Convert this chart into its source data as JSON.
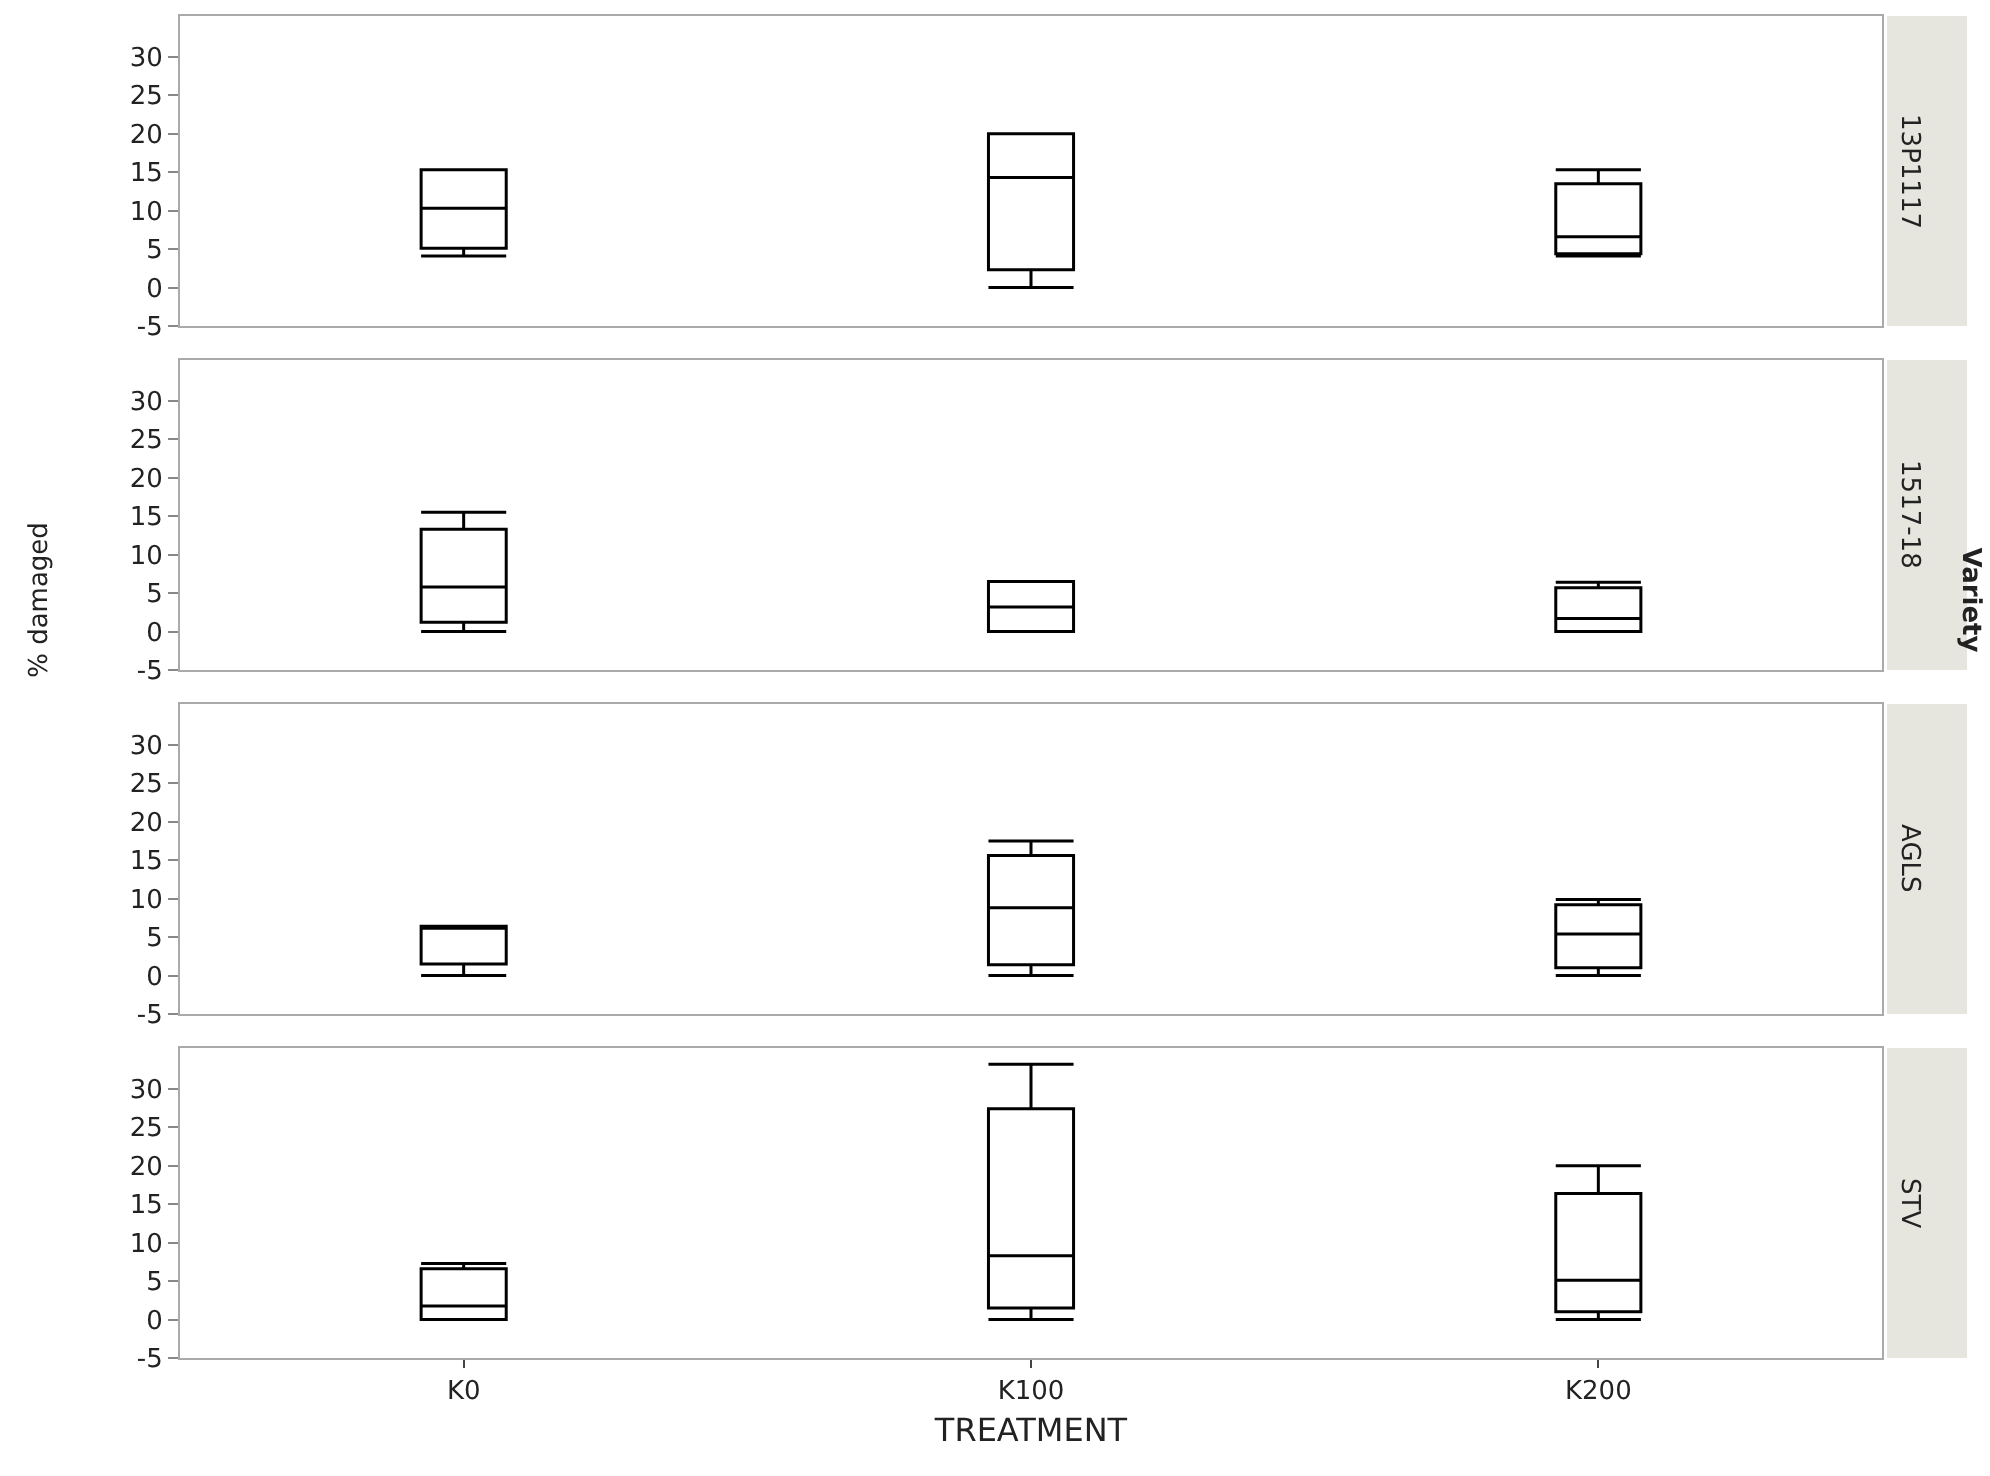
{
  "chart_data": [
    {
      "type": "box",
      "title": "13P1117",
      "tick_labels": "y",
      "ylim": [
        -5,
        35.3
      ],
      "yticks": [
        -5,
        0,
        5,
        10,
        15,
        20,
        25,
        30
      ],
      "boxes": [
        {
          "low": 4.1,
          "q1": 5.1,
          "median": 10.3,
          "q3": 15.3,
          "high": 15.3
        },
        {
          "low": 0,
          "q1": 2.3,
          "median": 14.3,
          "q3": 20,
          "high": 20
        },
        {
          "low": 4.1,
          "q1": 4.4,
          "median": 6.6,
          "q3": 13.5,
          "high": 15.3
        }
      ]
    },
    {
      "type": "box",
      "title": "1517-18",
      "ylabel": "% damaged",
      "annotations": [
        "Variety"
      ],
      "tick_labels": "y",
      "ylim": [
        -5,
        35.3
      ],
      "yticks": [
        -5,
        0,
        5,
        10,
        15,
        20,
        25,
        30
      ],
      "boxes": [
        {
          "low": 0,
          "q1": 1.2,
          "median": 5.8,
          "q3": 13.3,
          "high": 15.5
        },
        {
          "low": 0,
          "q1": 0,
          "median": 3.2,
          "q3": 6.5,
          "high": 6.5
        },
        {
          "low": 0,
          "q1": 0,
          "median": 1.7,
          "q3": 5.7,
          "high": 6.4
        }
      ]
    },
    {
      "type": "box",
      "title": "AGLS",
      "tick_labels": "y",
      "ylim": [
        -5,
        35.3
      ],
      "yticks": [
        -5,
        0,
        5,
        10,
        15,
        20,
        25,
        30
      ],
      "boxes": [
        {
          "low": 0,
          "q1": 1.5,
          "median": 6.2,
          "q3": 6.4,
          "high": 6.4
        },
        {
          "low": 0,
          "q1": 1.4,
          "median": 8.8,
          "q3": 15.6,
          "high": 17.5
        },
        {
          "low": 0,
          "q1": 1.0,
          "median": 5.4,
          "q3": 9.2,
          "high": 9.9
        }
      ]
    },
    {
      "type": "box",
      "title": "STV",
      "xlabel": "TREATMENT",
      "categories": [
        "K0",
        "K100",
        "K200"
      ],
      "ylim": [
        -5,
        35.3
      ],
      "yticks": [
        -5,
        0,
        5,
        10,
        15,
        20,
        25,
        30
      ],
      "boxes": [
        {
          "low": 0,
          "q1": 0,
          "median": 1.75,
          "q3": 6.6,
          "high": 7.3
        },
        {
          "low": 0,
          "q1": 1.5,
          "median": 8.3,
          "q3": 27.4,
          "high": 33.2
        },
        {
          "low": 0,
          "q1": 1.0,
          "median": 5.1,
          "q3": 16.4,
          "high": 20
        }
      ]
    }
  ]
}
